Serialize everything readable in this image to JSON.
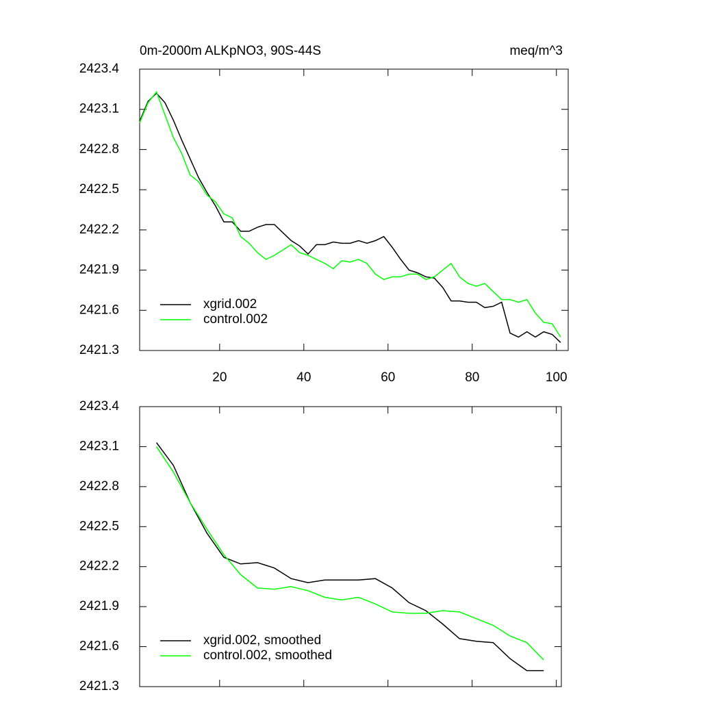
{
  "chart_data": [
    {
      "type": "line",
      "title": "0m-2000m ALKpNO3, 90S-44S",
      "title_right": "meq/m^3",
      "x": [
        1,
        3,
        5,
        7,
        9,
        11,
        13,
        15,
        17,
        19,
        21,
        23,
        25,
        27,
        29,
        31,
        33,
        35,
        37,
        39,
        41,
        43,
        45,
        47,
        49,
        51,
        53,
        55,
        57,
        59,
        61,
        63,
        65,
        67,
        69,
        71,
        73,
        75,
        77,
        79,
        81,
        83,
        85,
        87,
        89,
        91,
        93,
        95,
        97,
        99,
        101
      ],
      "series": [
        {
          "name": "xgrid.002",
          "color": "#000000",
          "values": [
            2423.01,
            2423.16,
            2423.22,
            2423.15,
            2423.02,
            2422.87,
            2422.73,
            2422.59,
            2422.48,
            2422.38,
            2422.26,
            2422.26,
            2422.19,
            2422.19,
            2422.22,
            2422.24,
            2422.24,
            2422.18,
            2422.12,
            2422.08,
            2422.02,
            2422.09,
            2422.09,
            2422.11,
            2422.1,
            2422.1,
            2422.12,
            2422.1,
            2422.12,
            2422.15,
            2422.07,
            2421.98,
            2421.9,
            2421.88,
            2421.85,
            2421.84,
            2421.77,
            2421.67,
            2421.67,
            2421.66,
            2421.66,
            2421.62,
            2421.63,
            2421.66,
            2421.43,
            2421.4,
            2421.44,
            2421.4,
            2421.44,
            2421.42,
            2421.36
          ]
        },
        {
          "name": "control.002",
          "color": "#00ff00",
          "values": [
            2423.0,
            2423.15,
            2423.23,
            2423.06,
            2422.89,
            2422.77,
            2422.61,
            2422.56,
            2422.46,
            2422.41,
            2422.32,
            2422.29,
            2422.15,
            2422.1,
            2422.03,
            2421.98,
            2422.01,
            2422.05,
            2422.09,
            2422.03,
            2422.01,
            2421.98,
            2421.95,
            2421.91,
            2421.97,
            2421.96,
            2421.98,
            2421.95,
            2421.87,
            2421.83,
            2421.85,
            2421.85,
            2421.87,
            2421.87,
            2421.83,
            2421.85,
            2421.9,
            2421.95,
            2421.85,
            2421.8,
            2421.78,
            2421.8,
            2421.74,
            2421.68,
            2421.68,
            2421.66,
            2421.68,
            2421.58,
            2421.51,
            2421.5,
            2421.4
          ]
        }
      ],
      "xlim": [
        1,
        102.8
      ],
      "xticks": [
        20,
        40,
        60,
        80,
        100
      ],
      "xtick_labels": true,
      "ylim": [
        2421.3,
        2423.4
      ],
      "yticks": [
        2421.3,
        2421.6,
        2421.9,
        2422.2,
        2422.5,
        2422.8,
        2423.1,
        2423.4
      ],
      "legend": "lower left"
    },
    {
      "type": "line",
      "x": [
        5,
        9,
        13,
        17,
        21,
        25,
        29,
        33,
        37,
        41,
        45,
        49,
        53,
        57,
        61,
        65,
        69,
        73,
        77,
        81,
        85,
        89,
        93,
        97
      ],
      "series": [
        {
          "name": "xgrid.002, smoothed",
          "color": "#000000",
          "values": [
            2423.13,
            2422.96,
            2422.68,
            2422.45,
            2422.27,
            2422.22,
            2422.23,
            2422.19,
            2422.11,
            2422.08,
            2422.1,
            2422.1,
            2422.1,
            2422.11,
            2422.04,
            2421.93,
            2421.87,
            2421.77,
            2421.66,
            2421.64,
            2421.63,
            2421.51,
            2421.42,
            2421.42
          ]
        },
        {
          "name": "control.002, smoothed",
          "color": "#00ff00",
          "values": [
            2423.1,
            2422.91,
            2422.68,
            2422.48,
            2422.29,
            2422.14,
            2422.04,
            2422.03,
            2422.05,
            2422.02,
            2421.97,
            2421.95,
            2421.97,
            2421.92,
            2421.86,
            2421.85,
            2421.85,
            2421.87,
            2421.86,
            2421.81,
            2421.76,
            2421.68,
            2421.63,
            2421.5
          ]
        }
      ],
      "xlim": [
        1,
        101.2
      ],
      "xticks": [
        20,
        40,
        60,
        80,
        100
      ],
      "xtick_labels": false,
      "ylim": [
        2421.3,
        2423.4
      ],
      "yticks": [
        2421.3,
        2421.6,
        2421.9,
        2422.2,
        2422.5,
        2422.8,
        2423.1,
        2423.4
      ],
      "legend": "lower left"
    }
  ]
}
